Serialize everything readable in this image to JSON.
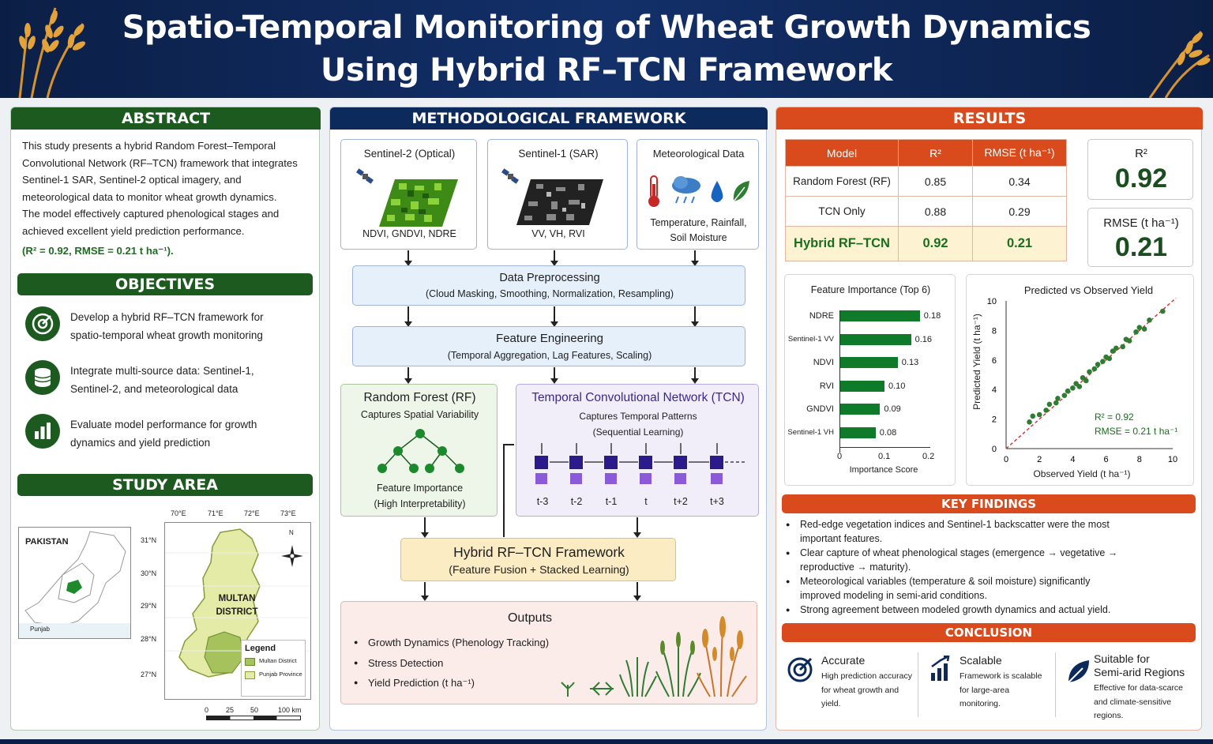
{
  "header": {
    "title_line1": "Spatio-Temporal Monitoring of Wheat Growth Dynamics",
    "title_line2": "Using Hybrid RF–TCN Framework"
  },
  "abstract": {
    "heading": "ABSTRACT",
    "line1": "This study presents a hybrid Random Forest–Temporal",
    "line2": "Convolutional Network (RF–TCN) framework that integrates",
    "line3": "Sentinel-1 SAR, Sentinel-2 optical imagery, and",
    "line4": "meteorological data to monitor wheat growth dynamics.",
    "line5": "The model effectively captured phenological stages and",
    "line6": "achieved excellent yield prediction performance.",
    "metrics": "(R² = 0.92, RMSE = 0.21 t ha⁻¹)."
  },
  "objectives": {
    "heading": "OBJECTIVES",
    "items": [
      {
        "icon": "target-icon",
        "line1": "Develop a hybrid RF–TCN framework for",
        "line2": "spatio-temporal wheat growth monitoring"
      },
      {
        "icon": "database-icon",
        "line1": "Integrate multi-source data: Sentinel-1,",
        "line2": "Sentinel-2, and meteorological data"
      },
      {
        "icon": "bar-chart-icon",
        "line1": "Evaluate model performance for growth",
        "line2": "dynamics and yield prediction"
      }
    ]
  },
  "study_area": {
    "heading": "STUDY AREA",
    "country": "PAKISTAN",
    "province": "Punjab",
    "district_line1": "MULTAN",
    "district_line2": "DISTRICT",
    "lon": [
      "70°E",
      "71°E",
      "72°E",
      "73°E"
    ],
    "lat": [
      "31°N",
      "30°N",
      "29°N",
      "28°N",
      "27°N"
    ],
    "legend_title": "Legend",
    "legend_items": [
      "Multan District",
      "Punjab Province"
    ],
    "scale": [
      "0",
      "25",
      "50",
      "100 km"
    ],
    "north": "N"
  },
  "method": {
    "heading": "METHODOLOGICAL FRAMEWORK",
    "s2_title": "Sentinel-2 (Optical)",
    "s2_bands": "NDVI, GNDVI, NDRE",
    "s1_title": "Sentinel-1 (SAR)",
    "s1_bands": "VV, VH, RVI",
    "met_title": "Meteorological Data",
    "met_vars1": "Temperature, Rainfall,",
    "met_vars2": "Soil Moisture",
    "prep_title": "Data Preprocessing",
    "prep_sub": "(Cloud Masking, Smoothing, Normalization, Resampling)",
    "fe_title": "Feature Engineering",
    "fe_sub": "(Temporal Aggregation, Lag Features, Scaling)",
    "rf_title": "Random Forest (RF)",
    "rf_sub": "Captures Spatial Variability",
    "rf_foot1": "Feature Importance",
    "rf_foot2": "(High Interpretability)",
    "tcn_title": "Temporal Convolutional Network (TCN)",
    "tcn_sub1": "Captures Temporal Patterns",
    "tcn_sub2": "(Sequential Learning)",
    "tcn_steps": [
      "t-3",
      "t-2",
      "t-1",
      "t",
      "t+2",
      "t+3"
    ],
    "hyb_title": "Hybrid RF–TCN Framework",
    "hyb_sub": "(Feature Fusion + Stacked Learning)",
    "out_title": "Outputs",
    "outputs": [
      "Growth Dynamics (Phenology Tracking)",
      "Stress Detection",
      "Yield Prediction (t ha⁻¹)"
    ]
  },
  "results": {
    "heading": "RESULTS",
    "table": {
      "headers": [
        "Model",
        "R²",
        "RMSE (t ha⁻¹)"
      ],
      "rows": [
        [
          "Random Forest (RF)",
          "0.85",
          "0.34"
        ],
        [
          "TCN Only",
          "0.88",
          "0.29"
        ],
        [
          "Hybrid RF–TCN",
          "0.92",
          "0.21"
        ]
      ]
    },
    "r2_label": "R²",
    "r2_value": "0.92",
    "rmse_label": "RMSE (t ha⁻¹)",
    "rmse_value": "0.21"
  },
  "chart_data": [
    {
      "type": "bar",
      "title": "Feature Importance (Top 6)",
      "categories": [
        "NDRE",
        "Sentinel-1 VV",
        "NDVI",
        "RVI",
        "GNDVI",
        "Sentinel-1 VH"
      ],
      "values": [
        0.18,
        0.16,
        0.13,
        0.1,
        0.09,
        0.08
      ],
      "xlabel": "Importance Score",
      "xlim": [
        0,
        0.2
      ],
      "ticks": [
        "0",
        "0.1",
        "0.2"
      ],
      "bar_color": "#0f7a2a"
    },
    {
      "type": "scatter",
      "title": "Predicted vs Observed Yield",
      "xlabel": "Observed Yield (t ha⁻¹)",
      "ylabel": "Predicted Yield (t ha⁻¹)",
      "xlim": [
        0,
        10
      ],
      "ylim": [
        0,
        10
      ],
      "xticks": [
        "0",
        "2",
        "4",
        "6",
        "8",
        "10"
      ],
      "yticks": [
        "0",
        "2",
        "4",
        "6",
        "8",
        "10"
      ],
      "annotation1": "R² = 0.92",
      "annotation2": "RMSE = 0.21 t ha⁻¹",
      "point_color": "#2e7d32",
      "line_color": "#d32f2f",
      "points": [
        [
          1.4,
          1.8
        ],
        [
          1.6,
          2.2
        ],
        [
          2.0,
          2.3
        ],
        [
          2.4,
          2.6
        ],
        [
          2.6,
          3.0
        ],
        [
          3.0,
          3.1
        ],
        [
          3.1,
          3.4
        ],
        [
          3.5,
          3.6
        ],
        [
          3.7,
          3.9
        ],
        [
          4.0,
          4.1
        ],
        [
          4.2,
          4.4
        ],
        [
          4.4,
          4.2
        ],
        [
          4.6,
          4.8
        ],
        [
          4.8,
          4.6
        ],
        [
          5.0,
          5.2
        ],
        [
          5.3,
          5.4
        ],
        [
          5.5,
          5.7
        ],
        [
          5.8,
          5.9
        ],
        [
          6.0,
          6.2
        ],
        [
          6.2,
          6.1
        ],
        [
          6.4,
          6.6
        ],
        [
          6.6,
          6.8
        ],
        [
          7.0,
          6.9
        ],
        [
          7.2,
          7.4
        ],
        [
          7.4,
          7.3
        ],
        [
          7.8,
          7.9
        ],
        [
          8.0,
          8.2
        ],
        [
          8.3,
          8.1
        ],
        [
          8.6,
          8.7
        ],
        [
          9.4,
          9.3
        ]
      ]
    }
  ],
  "key_findings": {
    "heading": "KEY FINDINGS",
    "items": [
      {
        "line1": "Red-edge vegetation indices and Sentinel-1 backscatter were the most",
        "line2": "important features."
      },
      {
        "line1": "Clear capture of wheat phenological stages (emergence → vegetative →",
        "line2": "reproductive → maturity)."
      },
      {
        "line1": "Meteorological variables (temperature & soil moisture) significantly",
        "line2": "improved modeling in semi-arid conditions."
      },
      {
        "line1": "Strong agreement between modeled growth dynamics and actual yield.",
        "line2": ""
      }
    ]
  },
  "conclusion": {
    "heading": "CONCLUSION",
    "items": [
      {
        "title": "Accurate",
        "lines": [
          "High prediction accuracy",
          "for wheat growth and",
          "yield."
        ]
      },
      {
        "title": "Scalable",
        "lines": [
          "Framework is scalable",
          "for large-area",
          "monitoring."
        ]
      },
      {
        "title": "Suitable for",
        "title2": "Semi-arid Regions",
        "lines": [
          "Effective for data-scarce",
          "and climate-sensitive",
          "regions."
        ]
      }
    ]
  }
}
